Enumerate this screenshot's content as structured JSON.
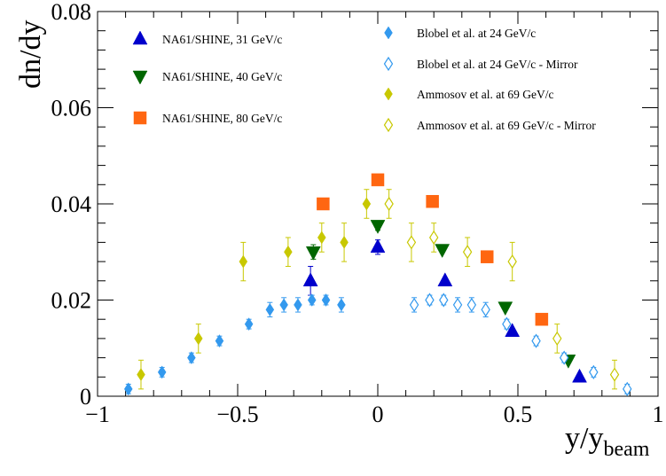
{
  "chart_data": {
    "type": "scatter",
    "ylabel": "dn/dy",
    "xlabel": {
      "main": "y/y",
      "sub": "beam"
    },
    "xlim": [
      -1,
      1
    ],
    "ylim": [
      0,
      0.08
    ],
    "x_ticks": [
      -1,
      -0.5,
      0,
      0.5,
      1
    ],
    "x_tick_labels": [
      "−1",
      "−0.5",
      "0",
      "0.5",
      "1"
    ],
    "y_ticks": [
      0,
      0.02,
      0.04,
      0.06,
      0.08
    ],
    "y_tick_labels": [
      "0",
      "0.02",
      "0.04",
      "0.06",
      "0.08"
    ],
    "grid": false,
    "series": [
      {
        "name": "NA61/SHINE, 31 GeV/c",
        "marker": "triangle-up",
        "filled": true,
        "color": "#0000cc",
        "points": [
          {
            "x": -0.24,
            "y": 0.024,
            "err": 0.003
          },
          {
            "x": 0.0,
            "y": 0.031,
            "err": 0.0015
          },
          {
            "x": 0.24,
            "y": 0.024,
            "err": 0.0005
          },
          {
            "x": 0.48,
            "y": 0.0135,
            "err": 0.0005
          },
          {
            "x": 0.72,
            "y": 0.004,
            "err": 0.0003
          }
        ]
      },
      {
        "name": "NA61/SHINE, 40 GeV/c",
        "marker": "triangle-down",
        "filled": true,
        "color": "#006600",
        "points": [
          {
            "x": -0.23,
            "y": 0.03,
            "err": 0.0015
          },
          {
            "x": 0.0,
            "y": 0.0355,
            "err": 0.001
          },
          {
            "x": 0.23,
            "y": 0.0305,
            "err": 0.0005
          },
          {
            "x": 0.455,
            "y": 0.0185,
            "err": 0.0005
          },
          {
            "x": 0.68,
            "y": 0.0075,
            "err": 0.0003
          }
        ]
      },
      {
        "name": "NA61/SHINE, 80 GeV/c",
        "marker": "square",
        "filled": true,
        "color": "#ff6611",
        "points": [
          {
            "x": -0.195,
            "y": 0.04
          },
          {
            "x": 0.0,
            "y": 0.045
          },
          {
            "x": 0.195,
            "y": 0.0405
          },
          {
            "x": 0.39,
            "y": 0.029
          },
          {
            "x": 0.585,
            "y": 0.016
          }
        ]
      },
      {
        "name": "Blobel et al. at 24 GeV/c",
        "marker": "diamond",
        "filled": true,
        "color": "#3399ee",
        "points": [
          {
            "x": -0.89,
            "y": 0.0015,
            "err": 0.001
          },
          {
            "x": -0.77,
            "y": 0.005,
            "err": 0.001
          },
          {
            "x": -0.665,
            "y": 0.008,
            "err": 0.001
          },
          {
            "x": -0.565,
            "y": 0.0115,
            "err": 0.001
          },
          {
            "x": -0.46,
            "y": 0.015,
            "err": 0.001
          },
          {
            "x": -0.385,
            "y": 0.018,
            "err": 0.0015
          },
          {
            "x": -0.335,
            "y": 0.019,
            "err": 0.0015
          },
          {
            "x": -0.285,
            "y": 0.019,
            "err": 0.0015
          },
          {
            "x": -0.235,
            "y": 0.02,
            "err": 0.001
          },
          {
            "x": -0.185,
            "y": 0.02,
            "err": 0.001
          },
          {
            "x": -0.13,
            "y": 0.019,
            "err": 0.0015
          }
        ]
      },
      {
        "name": "Blobel et al. at 24 GeV/c - Mirror",
        "marker": "diamond",
        "filled": false,
        "color": "#3399ee",
        "points": [
          {
            "x": 0.13,
            "y": 0.019,
            "err": 0.0015
          },
          {
            "x": 0.185,
            "y": 0.02,
            "err": 0.001
          },
          {
            "x": 0.235,
            "y": 0.02,
            "err": 0.001
          },
          {
            "x": 0.285,
            "y": 0.019,
            "err": 0.0015
          },
          {
            "x": 0.335,
            "y": 0.019,
            "err": 0.0015
          },
          {
            "x": 0.385,
            "y": 0.018,
            "err": 0.0015
          },
          {
            "x": 0.46,
            "y": 0.015,
            "err": 0.001
          },
          {
            "x": 0.565,
            "y": 0.0115,
            "err": 0.001
          },
          {
            "x": 0.665,
            "y": 0.008,
            "err": 0.001
          },
          {
            "x": 0.77,
            "y": 0.005,
            "err": 0.001
          },
          {
            "x": 0.89,
            "y": 0.0015,
            "err": 0.001
          }
        ]
      },
      {
        "name": "Ammosov et al. at 69 GeV/c",
        "marker": "diamond",
        "filled": true,
        "color": "#c8c800",
        "points": [
          {
            "x": -0.845,
            "y": 0.0045,
            "err": 0.003
          },
          {
            "x": -0.64,
            "y": 0.012,
            "err": 0.003
          },
          {
            "x": -0.48,
            "y": 0.028,
            "err": 0.004
          },
          {
            "x": -0.32,
            "y": 0.03,
            "err": 0.003
          },
          {
            "x": -0.2,
            "y": 0.033,
            "err": 0.003
          },
          {
            "x": -0.12,
            "y": 0.032,
            "err": 0.004
          },
          {
            "x": -0.04,
            "y": 0.04,
            "err": 0.003
          }
        ]
      },
      {
        "name": "Ammosov et al. at 69 GeV/c - Mirror",
        "marker": "diamond",
        "filled": false,
        "color": "#c8c800",
        "points": [
          {
            "x": 0.04,
            "y": 0.04,
            "err": 0.003
          },
          {
            "x": 0.12,
            "y": 0.032,
            "err": 0.004
          },
          {
            "x": 0.2,
            "y": 0.033,
            "err": 0.003
          },
          {
            "x": 0.32,
            "y": 0.03,
            "err": 0.003
          },
          {
            "x": 0.48,
            "y": 0.028,
            "err": 0.004
          },
          {
            "x": 0.64,
            "y": 0.012,
            "err": 0.003
          },
          {
            "x": 0.845,
            "y": 0.0045,
            "err": 0.003
          }
        ]
      }
    ],
    "legend": {
      "left_column": [
        0,
        1,
        2
      ],
      "right_column": [
        3,
        4,
        5,
        6
      ]
    }
  }
}
